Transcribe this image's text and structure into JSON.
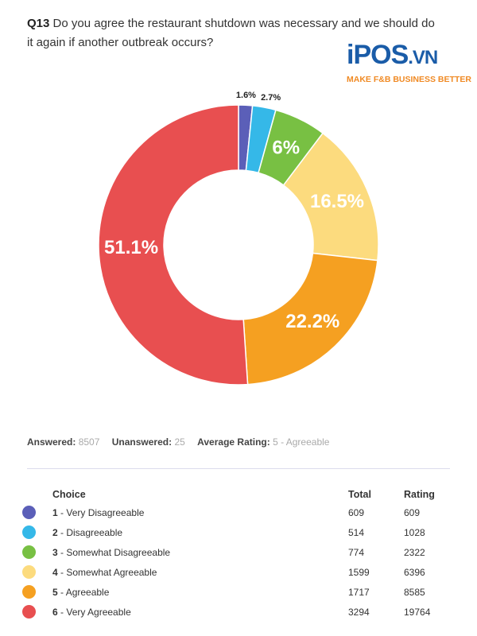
{
  "question": {
    "number": "Q13",
    "text": "Do you agree the restaurant shutdown was necessary and we should do it again if another outbreak occurs?"
  },
  "logo": {
    "brand": "iPOS",
    "suffix": ".VN",
    "tagline": "MAKE F&B BUSINESS BETTER"
  },
  "stats": {
    "answered_label": "Answered:",
    "answered": "8507",
    "unanswered_label": "Unanswered:",
    "unanswered": "25",
    "avg_label": "Average Rating:",
    "avg": "5 - Agreeable"
  },
  "table": {
    "headers": [
      "Choice",
      "Total",
      "Rating"
    ],
    "rows": [
      {
        "num": "1",
        "label": " - Very Disagreeable",
        "total": "609",
        "rating": "609"
      },
      {
        "num": "2",
        "label": " - Disagreeable",
        "total": "514",
        "rating": "1028"
      },
      {
        "num": "3",
        "label": " - Somewhat Disagreeable",
        "total": "774",
        "rating": "2322"
      },
      {
        "num": "4",
        "label": " - Somewhat Agreeable",
        "total": "1599",
        "rating": "6396"
      },
      {
        "num": "5",
        "label": " - Agreeable",
        "total": "1717",
        "rating": "8585"
      },
      {
        "num": "6",
        "label": " - Very Agreeable",
        "total": "3294",
        "rating": "19764"
      }
    ]
  },
  "chart_data": {
    "type": "pie",
    "variant": "donut",
    "categories": [
      "1 - Very Disagreeable",
      "2 - Disagreeable",
      "3 - Somewhat Disagreeable",
      "4 - Somewhat Agreeable",
      "5 - Agreeable",
      "6 - Very Agreeable"
    ],
    "values": [
      1.6,
      2.7,
      6,
      16.5,
      22.2,
      51.1
    ],
    "labels": [
      "1.6%",
      "2.7%",
      "6%",
      "16.5%",
      "22.2%",
      "51.1%"
    ],
    "colors": [
      "#5b5fb8",
      "#35b8e8",
      "#78c043",
      "#fcdb7e",
      "#f5a021",
      "#e84f50"
    ],
    "unit": "%"
  }
}
